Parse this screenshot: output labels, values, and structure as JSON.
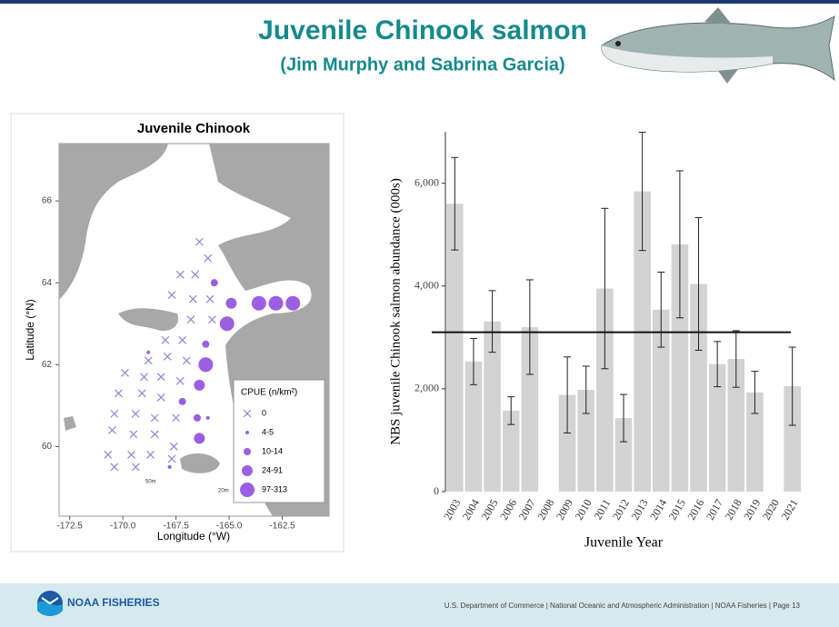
{
  "header": {
    "title": "Juvenile Chinook salmon",
    "subtitle": "(Jim Murphy and Sabrina Garcia)"
  },
  "footer": {
    "brand": "NOAA FISHERIES",
    "text": "U.S. Department of Commerce  |  National Oceanic and Atmospheric Administration  |  NOAA Fisheries  |  Page 13"
  },
  "chart_data": [
    {
      "type": "scatter",
      "title": "Juvenile Chinook",
      "x_label": "Longitude (°W)",
      "y_label": "Latitude (°N)",
      "legend_title": "CPUE (n/km²)",
      "annotations": [
        "50m",
        "20m"
      ],
      "xlim": [
        -173,
        -160.3
      ],
      "ylim": [
        58.3,
        67.4
      ],
      "xticks": [
        -172.5,
        {
          "value": -170,
          "label": "-170.0"
        },
        -167.5,
        {
          "value": -165,
          "label": "-165.0"
        },
        -162.5
      ],
      "yticks": [
        60,
        62,
        64,
        66
      ],
      "series": [
        {
          "name": "0",
          "color": "#8a86d6",
          "marker": "x",
          "size": 4,
          "x": [
            -166.4,
            -166.0,
            -167.3,
            -166.6,
            -167.7,
            -166.7,
            -165.9,
            -166.8,
            -165.8,
            -168.0,
            -167.2,
            -168.8,
            -167.9,
            -167.0,
            -169.9,
            -169.0,
            -168.2,
            -170.2,
            -169.1,
            -168.2,
            -167.3,
            -170.4,
            -169.4,
            -168.5,
            -167.5,
            -170.5,
            -169.5,
            -168.5,
            -167.6,
            -169.6,
            -168.7,
            -167.7,
            -170.7,
            -170.4,
            -169.4
          ],
          "y": [
            65.0,
            64.6,
            64.2,
            64.2,
            63.7,
            63.6,
            63.6,
            63.1,
            63.1,
            62.6,
            62.6,
            62.1,
            62.2,
            62.1,
            61.8,
            61.7,
            61.7,
            61.3,
            61.3,
            61.2,
            61.6,
            60.8,
            60.8,
            60.7,
            60.7,
            60.4,
            60.3,
            60.3,
            60.0,
            59.8,
            59.8,
            59.7,
            59.8,
            59.5,
            59.5
          ]
        },
        {
          "name": "4-5",
          "color": "#9b5fe3",
          "marker": "circle",
          "size": 2,
          "x": [
            -168.8,
            -166.0,
            -167.8
          ],
          "y": [
            62.3,
            60.7,
            59.5
          ]
        },
        {
          "name": "10-14",
          "color": "#9b5fe3",
          "marker": "circle",
          "size": 4,
          "x": [
            -165.7,
            -166.1,
            -167.2,
            -166.5
          ],
          "y": [
            64.0,
            62.5,
            61.1,
            60.7
          ]
        },
        {
          "name": "24-91",
          "color": "#9b5fe3",
          "marker": "circle",
          "size": 6,
          "x": [
            -166.4,
            -164.9,
            -166.4
          ],
          "y": [
            61.5,
            63.5,
            60.2
          ]
        },
        {
          "name": "97-313",
          "color": "#9b5fe3",
          "marker": "circle",
          "size": 8,
          "x": [
            -165.1,
            -166.1,
            -163.6,
            -162.8,
            -162.0
          ],
          "y": [
            63.0,
            62.0,
            63.5,
            63.5,
            63.5
          ]
        }
      ]
    },
    {
      "type": "bar",
      "x_label": "Juvenile Year",
      "y_label": "NBS juvenile Chinook salmon abundance (000s)",
      "categories": [
        "2003",
        "2004",
        "2005",
        "2006",
        "2007",
        "2008",
        "2009",
        "2010",
        "2011",
        "2012",
        "2013",
        "2014",
        "2015",
        "2016",
        "2017",
        "2018",
        "2019",
        "2020",
        "2021"
      ],
      "values": [
        5600,
        2530,
        3310,
        1575,
        3200,
        null,
        1880,
        1980,
        3950,
        1430,
        5840,
        3540,
        4810,
        4040,
        2480,
        2580,
        1930,
        null,
        2050
      ],
      "errors": [
        900,
        450,
        600,
        270,
        920,
        null,
        740,
        460,
        1560,
        460,
        1150,
        730,
        1430,
        1290,
        440,
        550,
        410,
        null,
        760
      ],
      "color": "#d3d3d3",
      "reference_line": 3100,
      "ylim": [
        0,
        7000
      ],
      "yticks": [
        0,
        {
          "value": 2000,
          "label": "2,000"
        },
        {
          "value": 4000,
          "label": "4,000"
        },
        {
          "value": 6000,
          "label": "6,000"
        }
      ],
      "grid": false
    }
  ]
}
